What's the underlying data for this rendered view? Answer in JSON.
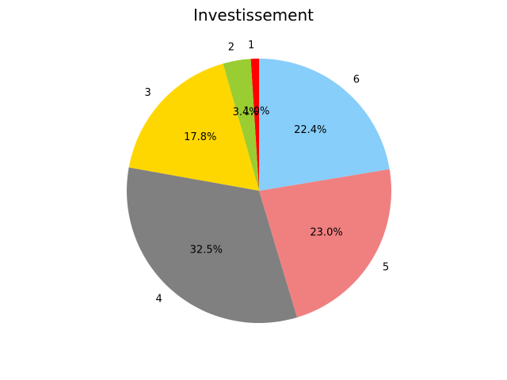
{
  "chart_data": {
    "type": "pie",
    "title": "Investissement",
    "categories": [
      "1",
      "2",
      "3",
      "4",
      "5",
      "6"
    ],
    "values": [
      1.0,
      3.4,
      17.8,
      32.5,
      23.0,
      22.4
    ],
    "percent_labels": [
      "1.0%",
      "3.4%",
      "17.8%",
      "32.5%",
      "23.0%",
      "22.4%"
    ],
    "colors": [
      "#ff0000",
      "#9acd32",
      "#ffd700",
      "#808080",
      "#f08080",
      "#87cefa"
    ],
    "start_angle_deg": 90,
    "direction": "counterclockwise",
    "legend": "none"
  }
}
